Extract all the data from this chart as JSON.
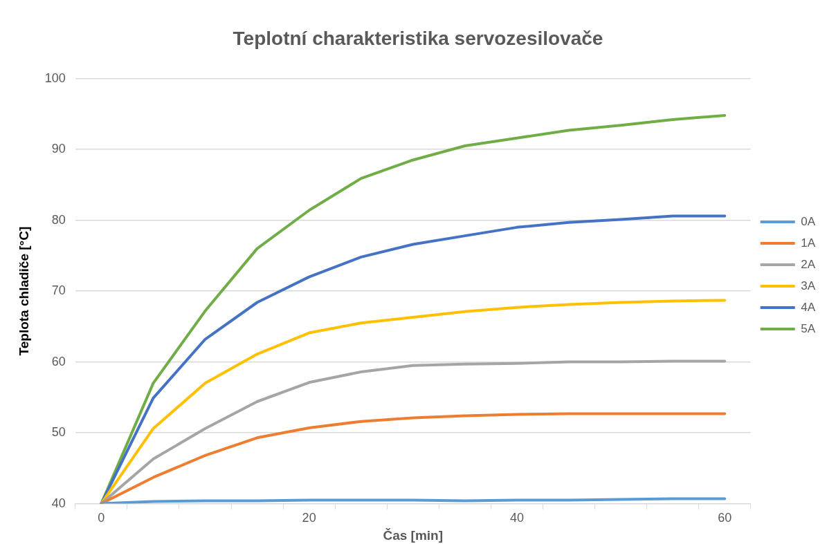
{
  "chart_data": {
    "type": "line",
    "title": "Teplotní charakteristika servozesilovače",
    "xlabel": "Čas [min]",
    "ylabel": "Teplota chladiče [°C]",
    "categories": [
      "0",
      null,
      null,
      null,
      "20",
      null,
      null,
      null,
      "40",
      null,
      null,
      null,
      "60"
    ],
    "series": [
      {
        "name": "0A",
        "color": "#5b9bd5",
        "values": [
          40,
          40.3,
          40.4,
          40.4,
          40.5,
          40.5,
          40.5,
          40.4,
          40.5,
          40.5,
          40.6,
          40.7,
          40.7
        ]
      },
      {
        "name": "1A",
        "color": "#ed7d31",
        "values": [
          40,
          43.7,
          46.8,
          49.3,
          50.7,
          51.6,
          52.1,
          52.4,
          52.6,
          52.7,
          52.7,
          52.7,
          52.7
        ]
      },
      {
        "name": "2A",
        "color": "#a5a5a5",
        "values": [
          40,
          46.3,
          50.6,
          54.4,
          57.1,
          58.6,
          59.5,
          59.7,
          59.8,
          60.0,
          60.0,
          60.1,
          60.1
        ]
      },
      {
        "name": "3A",
        "color": "#ffc000",
        "values": [
          40,
          50.6,
          57,
          61.1,
          64.1,
          65.5,
          66.3,
          67.1,
          67.7,
          68.1,
          68.4,
          68.6,
          68.7
        ]
      },
      {
        "name": "4A",
        "color": "#4472c4",
        "values": [
          40,
          54.9,
          63.2,
          68.4,
          72,
          74.8,
          76.6,
          77.8,
          79,
          79.7,
          80.1,
          80.6,
          80.6
        ]
      },
      {
        "name": "5A",
        "color": "#70ad47",
        "values": [
          40,
          57,
          67.2,
          76,
          81.4,
          85.9,
          88.5,
          90.5,
          91.6,
          92.7,
          93.4,
          94.2,
          94.8
        ]
      }
    ],
    "ylim": [
      40,
      100
    ],
    "yticks": [
      40,
      50,
      60,
      70,
      80,
      90,
      100
    ],
    "grid": "y",
    "legend": "right",
    "marker": "none",
    "line_style": "solid"
  }
}
